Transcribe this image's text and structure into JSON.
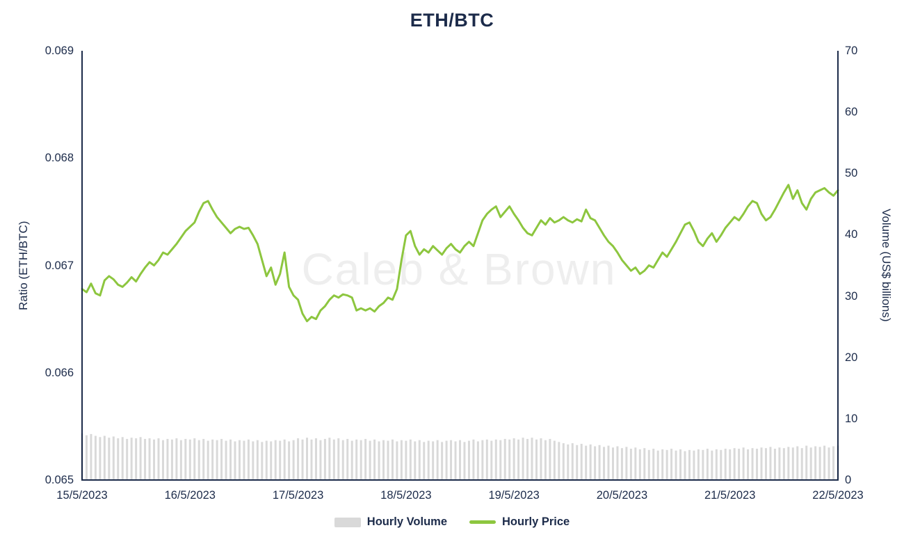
{
  "title": "ETH/BTC",
  "watermark": "Caleb & Brown",
  "colors": {
    "axis": "#1c2b4a",
    "title": "#1c2b4a",
    "price_line": "#8dc63f",
    "volume_bar": "#d9d9d9",
    "watermark": "#eeeeee"
  },
  "left_axis": {
    "label": "Ratio (ETH/BTC)",
    "ticks": [
      "0.069",
      "0.068",
      "0.067",
      "0.066",
      "0.065"
    ]
  },
  "right_axis": {
    "label": "Volume (US$ billions)",
    "ticks": [
      "70",
      "60",
      "50",
      "40",
      "30",
      "20",
      "10",
      "0"
    ]
  },
  "x_axis": {
    "labels": [
      "15/5/2023",
      "16/5/2023",
      "17/5/2023",
      "18/5/2023",
      "19/5/2023",
      "20/5/2023",
      "21/5/2023",
      "22/5/2023"
    ]
  },
  "legend": [
    {
      "label": "Hourly Volume",
      "type": "bar"
    },
    {
      "label": "Hourly Price",
      "type": "line"
    }
  ],
  "chart_data": {
    "type": "line",
    "title": "ETH/BTC",
    "x_unit": "hour",
    "x_range": [
      "15/5/2023 00:00",
      "22/5/2023 00:00"
    ],
    "x_tick_labels": [
      "15/5/2023",
      "16/5/2023",
      "17/5/2023",
      "18/5/2023",
      "19/5/2023",
      "20/5/2023",
      "21/5/2023",
      "22/5/2023"
    ],
    "ylabel_left": "Ratio (ETH/BTC)",
    "ylabel_right": "Volume (US$ billions)",
    "ylim_left": [
      0.065,
      0.069
    ],
    "ylim_right": [
      0,
      70
    ],
    "grid": false,
    "legend_position": "bottom",
    "series": [
      {
        "name": "Hourly Price",
        "type": "line",
        "axis": "left",
        "values": [
          0.06678,
          0.06675,
          0.06683,
          0.06674,
          0.06672,
          0.06686,
          0.0669,
          0.06687,
          0.06682,
          0.0668,
          0.06684,
          0.06689,
          0.06685,
          0.06692,
          0.06698,
          0.06703,
          0.067,
          0.06705,
          0.06712,
          0.0671,
          0.06715,
          0.0672,
          0.06726,
          0.06732,
          0.06736,
          0.0674,
          0.0675,
          0.06758,
          0.0676,
          0.06752,
          0.06745,
          0.0674,
          0.06735,
          0.0673,
          0.06734,
          0.06736,
          0.06734,
          0.06735,
          0.06728,
          0.0672,
          0.06705,
          0.0669,
          0.06698,
          0.06682,
          0.06692,
          0.06712,
          0.0668,
          0.06672,
          0.06668,
          0.06655,
          0.06648,
          0.06652,
          0.0665,
          0.06658,
          0.06662,
          0.06668,
          0.06672,
          0.0667,
          0.06673,
          0.06672,
          0.0667,
          0.06658,
          0.0666,
          0.06658,
          0.0666,
          0.06657,
          0.06662,
          0.06665,
          0.0667,
          0.06668,
          0.06678,
          0.06705,
          0.06728,
          0.06732,
          0.06718,
          0.0671,
          0.06715,
          0.06712,
          0.06718,
          0.06714,
          0.0671,
          0.06716,
          0.0672,
          0.06715,
          0.06712,
          0.06718,
          0.06722,
          0.06718,
          0.0673,
          0.06742,
          0.06748,
          0.06752,
          0.06755,
          0.06745,
          0.0675,
          0.06755,
          0.06748,
          0.06742,
          0.06735,
          0.0673,
          0.06728,
          0.06735,
          0.06742,
          0.06738,
          0.06744,
          0.0674,
          0.06742,
          0.06745,
          0.06742,
          0.0674,
          0.06743,
          0.06741,
          0.06752,
          0.06744,
          0.06742,
          0.06735,
          0.06728,
          0.06722,
          0.06718,
          0.06712,
          0.06705,
          0.067,
          0.06695,
          0.06698,
          0.06692,
          0.06695,
          0.067,
          0.06698,
          0.06705,
          0.06712,
          0.06708,
          0.06715,
          0.06722,
          0.0673,
          0.06738,
          0.0674,
          0.06732,
          0.06722,
          0.06718,
          0.06725,
          0.0673,
          0.06722,
          0.06728,
          0.06735,
          0.0674,
          0.06745,
          0.06742,
          0.06748,
          0.06755,
          0.0676,
          0.06758,
          0.06748,
          0.06742,
          0.06745,
          0.06752,
          0.0676,
          0.06768,
          0.06775,
          0.06762,
          0.0677,
          0.06758,
          0.06752,
          0.06762,
          0.06768,
          0.0677,
          0.06772,
          0.06768,
          0.06765,
          0.0677
        ]
      },
      {
        "name": "Hourly Volume",
        "type": "bar",
        "axis": "right",
        "values": [
          7.6,
          7.3,
          7.5,
          7.2,
          7.0,
          7.2,
          6.9,
          7.1,
          6.8,
          7.0,
          6.7,
          6.9,
          6.8,
          7.0,
          6.7,
          6.8,
          6.6,
          6.8,
          6.5,
          6.7,
          6.6,
          6.8,
          6.5,
          6.7,
          6.6,
          6.8,
          6.5,
          6.7,
          6.4,
          6.6,
          6.5,
          6.7,
          6.4,
          6.6,
          6.3,
          6.5,
          6.4,
          6.6,
          6.3,
          6.5,
          6.2,
          6.4,
          6.3,
          6.5,
          6.4,
          6.6,
          6.3,
          6.5,
          6.8,
          6.6,
          6.9,
          6.6,
          6.8,
          6.5,
          6.7,
          6.9,
          6.6,
          6.8,
          6.5,
          6.7,
          6.4,
          6.6,
          6.5,
          6.7,
          6.4,
          6.6,
          6.3,
          6.5,
          6.4,
          6.6,
          6.3,
          6.5,
          6.4,
          6.6,
          6.3,
          6.5,
          6.2,
          6.4,
          6.3,
          6.5,
          6.2,
          6.4,
          6.5,
          6.3,
          6.5,
          6.2,
          6.4,
          6.6,
          6.3,
          6.5,
          6.6,
          6.4,
          6.6,
          6.5,
          6.7,
          6.6,
          6.8,
          6.6,
          6.9,
          6.7,
          6.9,
          6.6,
          6.8,
          6.5,
          6.7,
          6.4,
          6.2,
          6.0,
          5.8,
          6.0,
          5.7,
          5.9,
          5.6,
          5.8,
          5.5,
          5.7,
          5.4,
          5.6,
          5.3,
          5.5,
          5.2,
          5.4,
          5.1,
          5.3,
          5.0,
          5.2,
          4.9,
          5.1,
          4.8,
          5.0,
          4.9,
          5.1,
          4.8,
          5.0,
          4.7,
          4.9,
          4.8,
          5.0,
          4.9,
          5.1,
          4.8,
          5.0,
          4.9,
          5.1,
          5.0,
          5.2,
          5.1,
          5.3,
          5.0,
          5.2,
          5.1,
          5.3,
          5.2,
          5.4,
          5.1,
          5.3,
          5.2,
          5.4,
          5.3,
          5.5,
          5.2,
          5.6,
          5.3,
          5.5,
          5.4,
          5.6,
          5.3,
          5.5,
          5.6
        ]
      }
    ]
  }
}
